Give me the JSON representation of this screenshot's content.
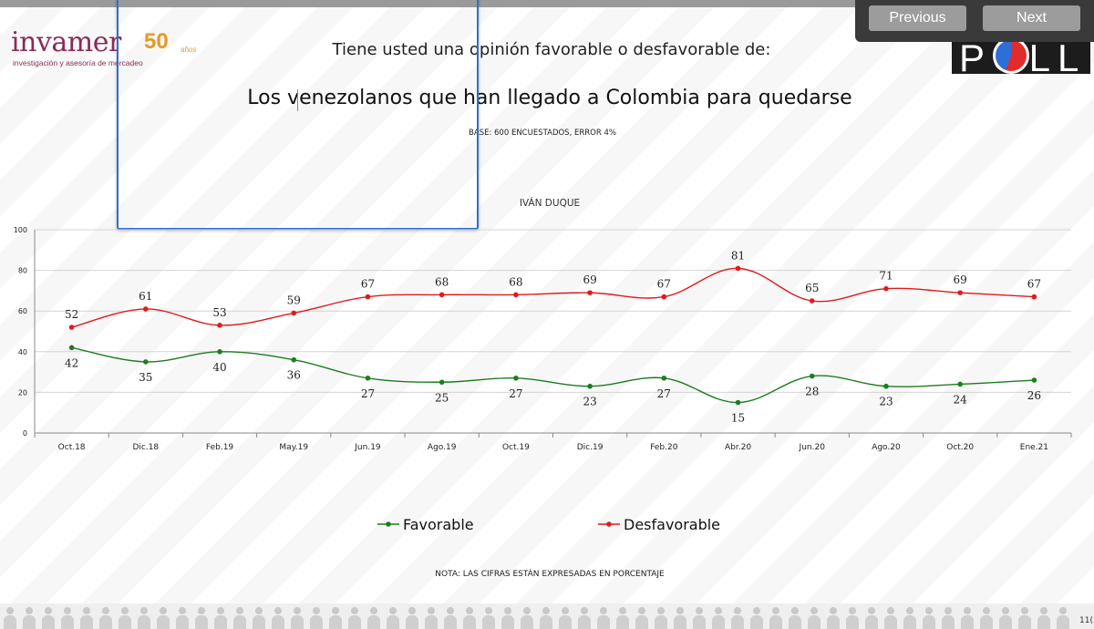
{
  "brand": {
    "name": "invamer",
    "years": "50",
    "years_suffix": "años",
    "tagline": "investigación y asesoría de mercadeo"
  },
  "header": {
    "question": "Tiene usted una opinión favorable o desfavorable de:",
    "subject": "Los venezolanos que han llegado a Colombia para quedarse",
    "base": "BASE: 600 ENCUESTADOS, ERROR 4%"
  },
  "nav": {
    "previous": "Previous",
    "next": "Next"
  },
  "poll_logo": {
    "text": "POLL"
  },
  "note": "NOTA: LAS CIFRAS ESTÁN EXPRESADAS EN PORCENTAJE",
  "page_number": "11(",
  "colors": {
    "favorable": "#1e7d1e",
    "desfavorable": "#e01b1b",
    "brand": "#8a2a57",
    "accent": "#e39a2b"
  },
  "chart_data": {
    "type": "line",
    "title": "IVÁN DUQUE",
    "categories": [
      "Oct.18",
      "Dic.18",
      "Feb.19",
      "May.19",
      "Jun.19",
      "Ago.19",
      "Oct.19",
      "Dic.19",
      "Feb.20",
      "Abr.20",
      "Jun.20",
      "Ago.20",
      "Oct.20",
      "Ene.21"
    ],
    "series": [
      {
        "name": "Favorable",
        "color": "#1e7d1e",
        "values": [
          42,
          35,
          40,
          36,
          27,
          25,
          27,
          23,
          27,
          15,
          28,
          23,
          24,
          26
        ]
      },
      {
        "name": "Desfavorable",
        "color": "#e01b1b",
        "values": [
          52,
          61,
          53,
          59,
          67,
          68,
          68,
          69,
          67,
          81,
          65,
          71,
          69,
          67
        ]
      }
    ],
    "yticks": [
      "0",
      "20",
      "40",
      "60",
      "80",
      "100"
    ],
    "ylim": [
      0,
      100
    ],
    "grid": true,
    "legend": "bottom-center",
    "xlabel": "",
    "ylabel": ""
  }
}
